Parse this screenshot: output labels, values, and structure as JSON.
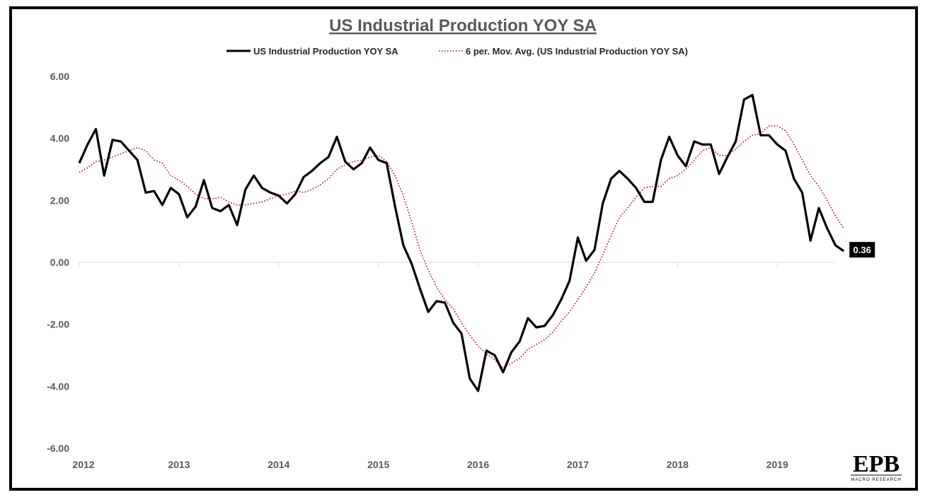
{
  "chart_data": {
    "type": "line",
    "title": "US Industrial Production YOY SA",
    "xlabel": "",
    "ylabel": "",
    "ylim": [
      -6,
      6
    ],
    "yticks": [
      "6.00",
      "4.00",
      "2.00",
      "0.00",
      "-2.00",
      "-4.00",
      "-6.00"
    ],
    "yticks_values": [
      6,
      4,
      2,
      0,
      -2,
      -4,
      -6
    ],
    "xlim": [
      2012.0,
      2019.58
    ],
    "xticks": [
      "2012",
      "2013",
      "2014",
      "2015",
      "2016",
      "2017",
      "2018",
      "2019"
    ],
    "xticks_values": [
      2012,
      2013,
      2014,
      2015,
      2016,
      2017,
      2018,
      2019
    ],
    "grid": false,
    "legend_position": "top-center",
    "last_value_label": "0.36",
    "series": [
      {
        "name": "US Industrial Production YOY SA",
        "color": "#000000",
        "style": "solid",
        "x_start": 2012.0,
        "x_step_months": 1,
        "values": [
          3.2,
          3.8,
          4.3,
          2.8,
          3.95,
          3.9,
          3.6,
          3.3,
          2.25,
          2.3,
          1.85,
          2.4,
          2.2,
          1.45,
          1.8,
          2.65,
          1.75,
          1.65,
          1.85,
          1.2,
          2.35,
          2.8,
          2.4,
          2.25,
          2.15,
          1.9,
          2.2,
          2.75,
          2.95,
          3.2,
          3.4,
          4.05,
          3.25,
          3.0,
          3.2,
          3.7,
          3.3,
          3.2,
          1.8,
          0.55,
          -0.05,
          -0.85,
          -1.6,
          -1.25,
          -1.3,
          -1.95,
          -2.3,
          -3.75,
          -4.15,
          -2.85,
          -3.0,
          -3.55,
          -2.9,
          -2.55,
          -1.8,
          -2.1,
          -2.05,
          -1.7,
          -1.2,
          -0.6,
          0.8,
          0.05,
          0.4,
          1.9,
          2.7,
          2.95,
          2.7,
          2.4,
          1.95,
          1.95,
          3.3,
          4.05,
          3.45,
          3.1,
          3.9,
          3.8,
          3.8,
          2.85,
          3.4,
          3.9,
          5.25,
          5.4,
          4.1,
          4.1,
          3.8,
          3.6,
          2.7,
          2.25,
          0.7,
          1.75,
          1.1,
          0.55,
          0.36
        ]
      },
      {
        "name": "6 per. Mov. Avg. (US Industrial Production YOY SA)",
        "color": "#c00000",
        "style": "dotted",
        "x_start": 2012.0,
        "x_step_months": 1,
        "values": [
          2.9,
          3.05,
          3.25,
          3.3,
          3.4,
          3.5,
          3.6,
          3.7,
          3.6,
          3.3,
          3.2,
          2.8,
          2.65,
          2.45,
          2.2,
          2.05,
          2.05,
          2.1,
          1.95,
          1.85,
          1.85,
          1.9,
          1.95,
          2.05,
          2.15,
          2.2,
          2.3,
          2.25,
          2.35,
          2.5,
          2.7,
          3.0,
          3.15,
          3.25,
          3.3,
          3.4,
          3.45,
          3.25,
          2.8,
          2.15,
          1.3,
          0.4,
          -0.25,
          -0.8,
          -1.2,
          -1.5,
          -1.95,
          -2.35,
          -2.7,
          -2.95,
          -3.15,
          -3.4,
          -3.25,
          -3.1,
          -2.8,
          -2.65,
          -2.5,
          -2.25,
          -1.9,
          -1.6,
          -1.2,
          -0.8,
          -0.35,
          0.25,
          0.85,
          1.45,
          1.75,
          2.1,
          2.4,
          2.45,
          2.45,
          2.7,
          2.8,
          3.0,
          3.3,
          3.6,
          3.7,
          3.45,
          3.45,
          3.65,
          3.9,
          4.1,
          4.15,
          4.4,
          4.4,
          4.25,
          3.8,
          3.3,
          2.8,
          2.45,
          2.0,
          1.5,
          1.1
        ]
      }
    ]
  },
  "logo": {
    "brand": "EPB",
    "tagline": "MACRO RESEARCH"
  }
}
